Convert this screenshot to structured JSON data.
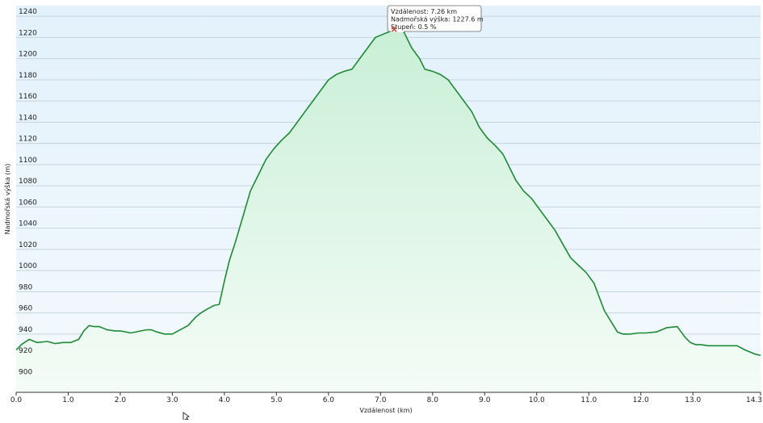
{
  "chart_data": {
    "type": "area",
    "xlabel": "Vzdálenost (km)",
    "ylabel": "Nadmořská výška (m)",
    "xlim": [
      0,
      14.3
    ],
    "ylim": [
      885,
      1250
    ],
    "x_ticks": [
      "0.0",
      "1.0",
      "2.0",
      "3.0",
      "4.0",
      "5.0",
      "6.0",
      "7.0",
      "8.0",
      "9.0",
      "10.0",
      "11.0",
      "12.0",
      "13.0",
      "14.3"
    ],
    "y_ticks": [
      "900",
      "920",
      "940",
      "960",
      "980",
      "1000",
      "1020",
      "1040",
      "1060",
      "1080",
      "1100",
      "1120",
      "1140",
      "1160",
      "1180",
      "1200",
      "1220",
      "1240"
    ],
    "grid": true,
    "colors": {
      "line": "#1f8a35",
      "fill_top": "#c9efd6",
      "fill_bottom": "#f4fcf7",
      "plot_bg_top": "#e2f1fb",
      "plot_bg_bottom": "#f4fafe",
      "marker": "#d23b2a"
    },
    "series": [
      {
        "x": [
          0,
          0.1,
          0.25,
          0.4,
          0.6,
          0.75,
          0.9,
          1.05,
          1.2,
          1.3,
          1.4,
          1.5,
          1.6,
          1.75,
          1.9,
          2.0,
          2.2,
          2.4,
          2.5,
          2.6,
          2.7,
          2.85,
          3.0,
          3.15,
          3.3,
          3.45,
          3.55,
          3.65,
          3.8,
          3.9,
          4.0,
          4.1,
          4.2,
          4.35,
          4.5,
          4.65,
          4.8,
          4.95,
          5.1,
          5.25,
          5.4,
          5.55,
          5.7,
          5.85,
          6.0,
          6.15,
          6.3,
          6.45,
          6.6,
          6.75,
          6.9,
          7.0,
          7.15,
          7.26,
          7.45,
          7.6,
          7.75,
          7.85,
          8.0,
          8.15,
          8.3,
          8.45,
          8.6,
          8.75,
          8.9,
          9.05,
          9.2,
          9.35,
          9.5,
          9.6,
          9.75,
          9.9,
          10.05,
          10.2,
          10.35,
          10.5,
          10.65,
          10.8,
          10.95,
          11.1,
          11.2,
          11.3,
          11.45,
          11.55,
          11.65,
          11.8,
          11.95,
          12.1,
          12.3,
          12.5,
          12.7,
          12.85,
          12.95,
          13.05,
          13.15,
          13.3,
          13.5,
          13.7,
          13.85,
          14.0,
          14.1,
          14.2,
          14.3
        ],
        "y": [
          925,
          930,
          935,
          932,
          933,
          931,
          932,
          932,
          935,
          943,
          948,
          947,
          947,
          944,
          943,
          943,
          941,
          943,
          944,
          944,
          942,
          940,
          940,
          944,
          948,
          956,
          960,
          963,
          967,
          968,
          990,
          1010,
          1025,
          1050,
          1075,
          1090,
          1105,
          1115,
          1123,
          1130,
          1140,
          1150,
          1160,
          1170,
          1180,
          1185,
          1188,
          1190,
          1200,
          1210,
          1220,
          1222,
          1225,
          1227.6,
          1225,
          1210,
          1200,
          1190,
          1188,
          1185,
          1180,
          1170,
          1160,
          1150,
          1135,
          1125,
          1118,
          1110,
          1095,
          1085,
          1075,
          1068,
          1058,
          1048,
          1038,
          1025,
          1012,
          1005,
          998,
          988,
          975,
          962,
          950,
          942,
          940,
          940,
          941,
          941,
          942,
          946,
          947,
          937,
          932,
          930,
          930,
          929,
          929,
          929,
          929,
          925,
          923,
          921,
          920
        ]
      }
    ],
    "tooltip": {
      "x": 7.26,
      "y": 1227.6,
      "lines": [
        "Vzdálenost: 7.26 km",
        "Nadmořská výška: 1227.6 m",
        "Stupeň: 0.5 %"
      ]
    }
  }
}
